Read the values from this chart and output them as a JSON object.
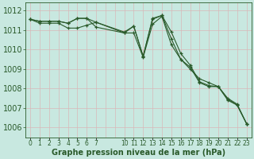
{
  "background_color": "#c8e8e0",
  "grid_color": "#d8b8b8",
  "line_color": "#2a5a2a",
  "xlabel": "Graphe pression niveau de la mer (hPa)",
  "xlabel_fontsize": 7,
  "ylabel_fontsize": 7,
  "ylim": [
    1005.5,
    1012.4
  ],
  "yticks": [
    1006,
    1007,
    1008,
    1009,
    1010,
    1011,
    1012
  ],
  "xlim": [
    -0.5,
    23.5
  ],
  "xtick_hours": [
    0,
    1,
    2,
    3,
    4,
    5,
    6,
    7,
    10,
    11,
    12,
    13,
    14,
    15,
    16,
    17,
    18,
    19,
    20,
    21,
    22,
    23
  ],
  "grid_x": [
    0,
    1,
    2,
    3,
    4,
    5,
    6,
    7,
    8,
    9,
    10,
    11,
    12,
    13,
    14,
    15,
    16,
    17,
    18,
    19,
    20,
    21,
    22,
    23
  ],
  "line1_x": [
    0,
    1,
    2,
    3,
    4,
    5,
    6,
    7,
    10,
    11,
    12,
    13,
    14,
    15,
    16,
    17,
    18,
    19,
    20,
    21,
    22,
    23
  ],
  "line1_y": [
    1011.55,
    1011.45,
    1011.45,
    1011.45,
    1011.35,
    1011.6,
    1011.6,
    1011.4,
    1010.9,
    1011.2,
    1009.65,
    1011.6,
    1011.75,
    1010.9,
    1009.8,
    1009.2,
    1008.35,
    1008.15,
    1008.1,
    1007.4,
    1007.15,
    1006.2
  ],
  "line2_x": [
    0,
    1,
    2,
    3,
    4,
    5,
    6,
    7,
    10,
    11,
    12,
    13,
    14,
    15,
    16,
    17,
    18,
    19,
    20,
    21,
    22,
    23
  ],
  "line2_y": [
    1011.55,
    1011.45,
    1011.45,
    1011.45,
    1011.35,
    1011.6,
    1011.6,
    1011.15,
    1010.85,
    1011.2,
    1009.65,
    1011.55,
    1011.75,
    1010.55,
    1009.5,
    1009.0,
    1008.5,
    1008.3,
    1008.1,
    1007.45,
    1007.15,
    1006.2
  ],
  "line3_x": [
    0,
    1,
    2,
    3,
    4,
    5,
    6,
    7,
    10,
    11,
    12,
    13,
    14,
    15,
    16,
    17,
    18,
    19,
    20,
    21,
    22,
    23
  ],
  "line3_y": [
    1011.55,
    1011.35,
    1011.35,
    1011.35,
    1011.1,
    1011.1,
    1011.25,
    1011.4,
    1010.85,
    1010.85,
    1009.6,
    1011.3,
    1011.7,
    1010.25,
    1009.5,
    1009.1,
    1008.3,
    1008.1,
    1008.1,
    1007.5,
    1007.2,
    1006.2
  ]
}
